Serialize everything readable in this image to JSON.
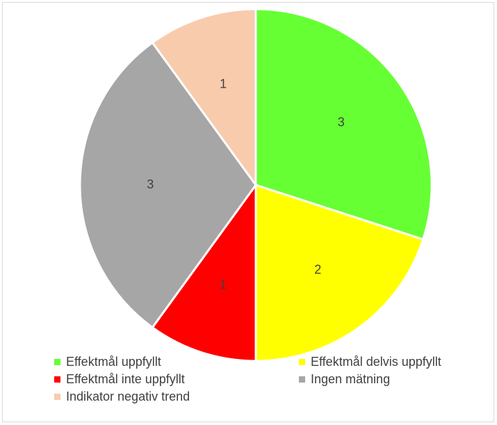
{
  "chart_data": {
    "type": "pie",
    "title": "",
    "labels": [
      "Effektmål uppfyllt",
      "Effektmål delvis uppfyllt",
      "Effektmål inte uppfyllt",
      "Ingen mätning",
      "Indikator negativ trend"
    ],
    "values": [
      3,
      2,
      1,
      3,
      1
    ],
    "data_labels": [
      "3",
      "2",
      "1",
      "3",
      "1"
    ],
    "colors": [
      "#66ff33",
      "#ffff00",
      "#ff0000",
      "#a6a6a6",
      "#f8cbad"
    ],
    "start_angle_degrees": 0,
    "direction": "clockwise",
    "legend_position": "bottom"
  }
}
